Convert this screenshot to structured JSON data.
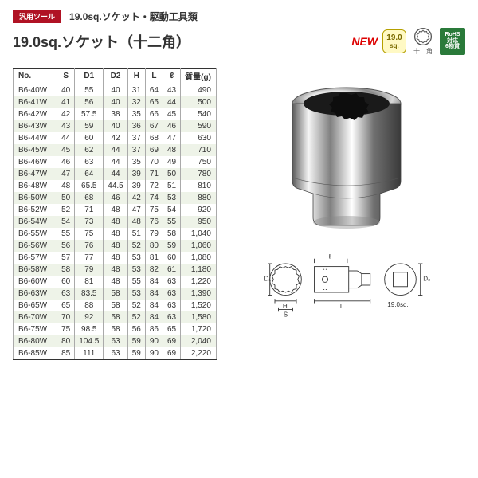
{
  "badge": {
    "tool": "汎用ツール",
    "new": "NEW",
    "spec_num": "19.0",
    "spec_unit": "sq.",
    "shape": "十二角",
    "rohs_l1": "RoHS",
    "rohs_l2": "対応",
    "rohs_l3": "6物質"
  },
  "category": "19.0sq.ソケット・駆動工具類",
  "title": "19.0sq.ソケット（十二角）",
  "table": {
    "columns": [
      "No.",
      "S",
      "D1",
      "D2",
      "H",
      "L",
      "ℓ",
      "質量(g)"
    ],
    "rows": [
      [
        "B6-40W",
        "40",
        "55",
        "40",
        "31",
        "64",
        "43",
        "490"
      ],
      [
        "B6-41W",
        "41",
        "56",
        "40",
        "32",
        "65",
        "44",
        "500"
      ],
      [
        "B6-42W",
        "42",
        "57.5",
        "38",
        "35",
        "66",
        "45",
        "540"
      ],
      [
        "B6-43W",
        "43",
        "59",
        "40",
        "36",
        "67",
        "46",
        "590"
      ],
      [
        "B6-44W",
        "44",
        "60",
        "42",
        "37",
        "68",
        "47",
        "630"
      ],
      [
        "B6-45W",
        "45",
        "62",
        "44",
        "37",
        "69",
        "48",
        "710"
      ],
      [
        "B6-46W",
        "46",
        "63",
        "44",
        "35",
        "70",
        "49",
        "750"
      ],
      [
        "B6-47W",
        "47",
        "64",
        "44",
        "39",
        "71",
        "50",
        "780"
      ],
      [
        "B6-48W",
        "48",
        "65.5",
        "44.5",
        "39",
        "72",
        "51",
        "810"
      ],
      [
        "B6-50W",
        "50",
        "68",
        "46",
        "42",
        "74",
        "53",
        "880"
      ],
      [
        "B6-52W",
        "52",
        "71",
        "48",
        "47",
        "75",
        "54",
        "920"
      ],
      [
        "B6-54W",
        "54",
        "73",
        "48",
        "48",
        "76",
        "55",
        "950"
      ],
      [
        "B6-55W",
        "55",
        "75",
        "48",
        "51",
        "79",
        "58",
        "1,040"
      ],
      [
        "B6-56W",
        "56",
        "76",
        "48",
        "52",
        "80",
        "59",
        "1,060"
      ],
      [
        "B6-57W",
        "57",
        "77",
        "48",
        "53",
        "81",
        "60",
        "1,080"
      ],
      [
        "B6-58W",
        "58",
        "79",
        "48",
        "53",
        "82",
        "61",
        "1,180"
      ],
      [
        "B6-60W",
        "60",
        "81",
        "48",
        "55",
        "84",
        "63",
        "1,220"
      ],
      [
        "B6-63W",
        "63",
        "83.5",
        "58",
        "53",
        "84",
        "63",
        "1,390"
      ],
      [
        "B6-65W",
        "65",
        "88",
        "58",
        "52",
        "84",
        "63",
        "1,520"
      ],
      [
        "B6-70W",
        "70",
        "92",
        "58",
        "52",
        "84",
        "63",
        "1,580"
      ],
      [
        "B6-75W",
        "75",
        "98.5",
        "58",
        "56",
        "86",
        "65",
        "1,720"
      ],
      [
        "B6-80W",
        "80",
        "104.5",
        "63",
        "59",
        "90",
        "69",
        "2,040"
      ],
      [
        "B6-85W",
        "85",
        "111",
        "63",
        "59",
        "90",
        "69",
        "2,220"
      ]
    ]
  },
  "diagram_labels": {
    "D1": "D₁",
    "H": "H",
    "S": "S",
    "l": "ℓ",
    "L": "L",
    "D2": "D₂",
    "drive": "19.0sq."
  },
  "colors": {
    "accent": "#b01224",
    "row_alt": "#eef3e8",
    "border": "#aaaaaa",
    "border_dark": "#333333",
    "rohs": "#2a7a3a",
    "spec_bg": "#fff9c4"
  }
}
